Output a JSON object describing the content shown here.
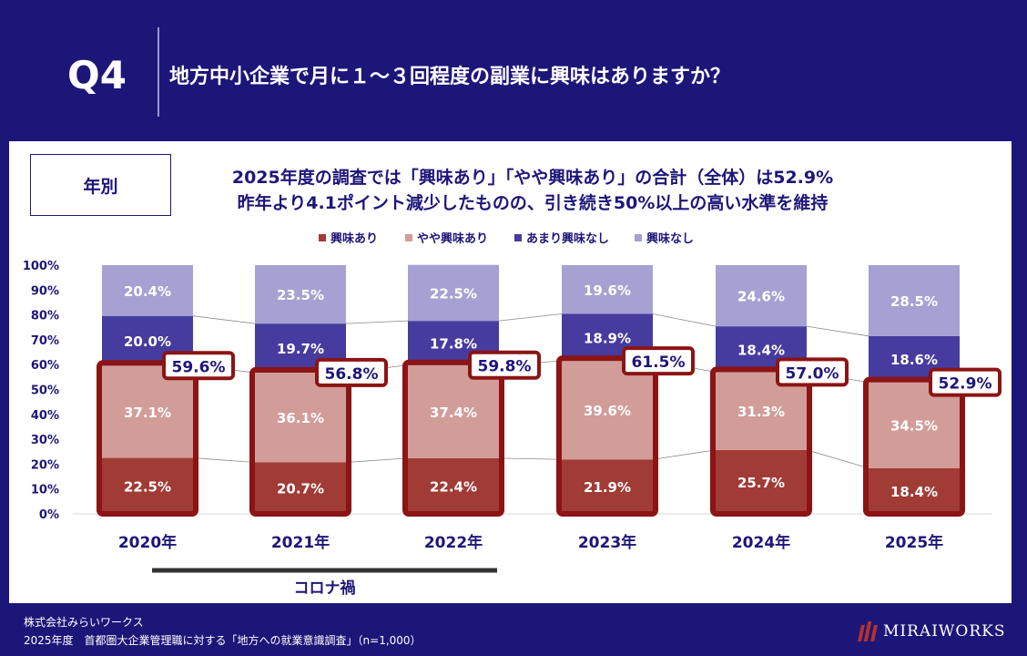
{
  "header": {
    "question_number": "Q4",
    "question_title": "地方中小企業で月に１～３回程度の副業に興味はありますか？"
  },
  "panel": {
    "badge": "年別",
    "subtitle_line1": "2025年度の調査では「興味あり」「やや興味あり」の合計（全体）は52.9%",
    "subtitle_line2": "昨年より4.1ポイント減少したものの、引き続き50%以上の高い水準を維持"
  },
  "chart_data": {
    "type": "bar",
    "stacked": "percent",
    "categories": [
      "2020年",
      "2021年",
      "2022年",
      "2023年",
      "2024年",
      "2025年"
    ],
    "series": [
      {
        "name": "興味あり",
        "color": "#a13b36",
        "values": [
          22.5,
          20.7,
          22.4,
          21.9,
          25.7,
          18.4
        ],
        "labels": [
          "22.5%",
          "20.7%",
          "22.4%",
          "21.9%",
          "25.7%",
          "18.4%"
        ]
      },
      {
        "name": "やや興味あり",
        "color": "#d29c98",
        "values": [
          37.1,
          36.1,
          37.4,
          39.6,
          31.3,
          34.5
        ],
        "labels": [
          "37.1%",
          "36.1%",
          "37.4%",
          "39.6%",
          "31.3%",
          "34.5%"
        ]
      },
      {
        "name": "あまり興味なし",
        "color": "#463c9f",
        "values": [
          20.0,
          19.7,
          17.8,
          18.9,
          18.4,
          18.6
        ],
        "labels": [
          "20.0%",
          "19.7%",
          "17.8%",
          "18.9%",
          "18.4%",
          "18.6%"
        ]
      },
      {
        "name": "興味なし",
        "color": "#a6a1d2",
        "values": [
          20.4,
          23.5,
          22.5,
          19.6,
          24.6,
          28.5
        ],
        "labels": [
          "20.4%",
          "23.5%",
          "22.5%",
          "19.6%",
          "24.6%",
          "28.5%"
        ]
      }
    ],
    "interest_totals": [
      59.6,
      56.8,
      59.8,
      61.5,
      57.0,
      52.9
    ],
    "interest_total_labels": [
      "59.6%",
      "56.8%",
      "59.8%",
      "61.5%",
      "57.0%",
      "52.9%"
    ],
    "yticks": [
      "0%",
      "10%",
      "20%",
      "30%",
      "40%",
      "50%",
      "60%",
      "70%",
      "80%",
      "90%",
      "100%"
    ],
    "ylim": [
      0,
      100
    ],
    "legend_position": "top",
    "highlight_color": "#8c1414",
    "annotation": {
      "label": "コロナ禍",
      "from_category": "2020年",
      "to_category": "2022年"
    }
  },
  "footer": {
    "company": "株式会社みらいワークス",
    "survey": "2025年度　首都圏大企業管理職に対する「地方への就業意識調査」（n=1,000）",
    "logo_text": "MIRAIWORKS"
  }
}
